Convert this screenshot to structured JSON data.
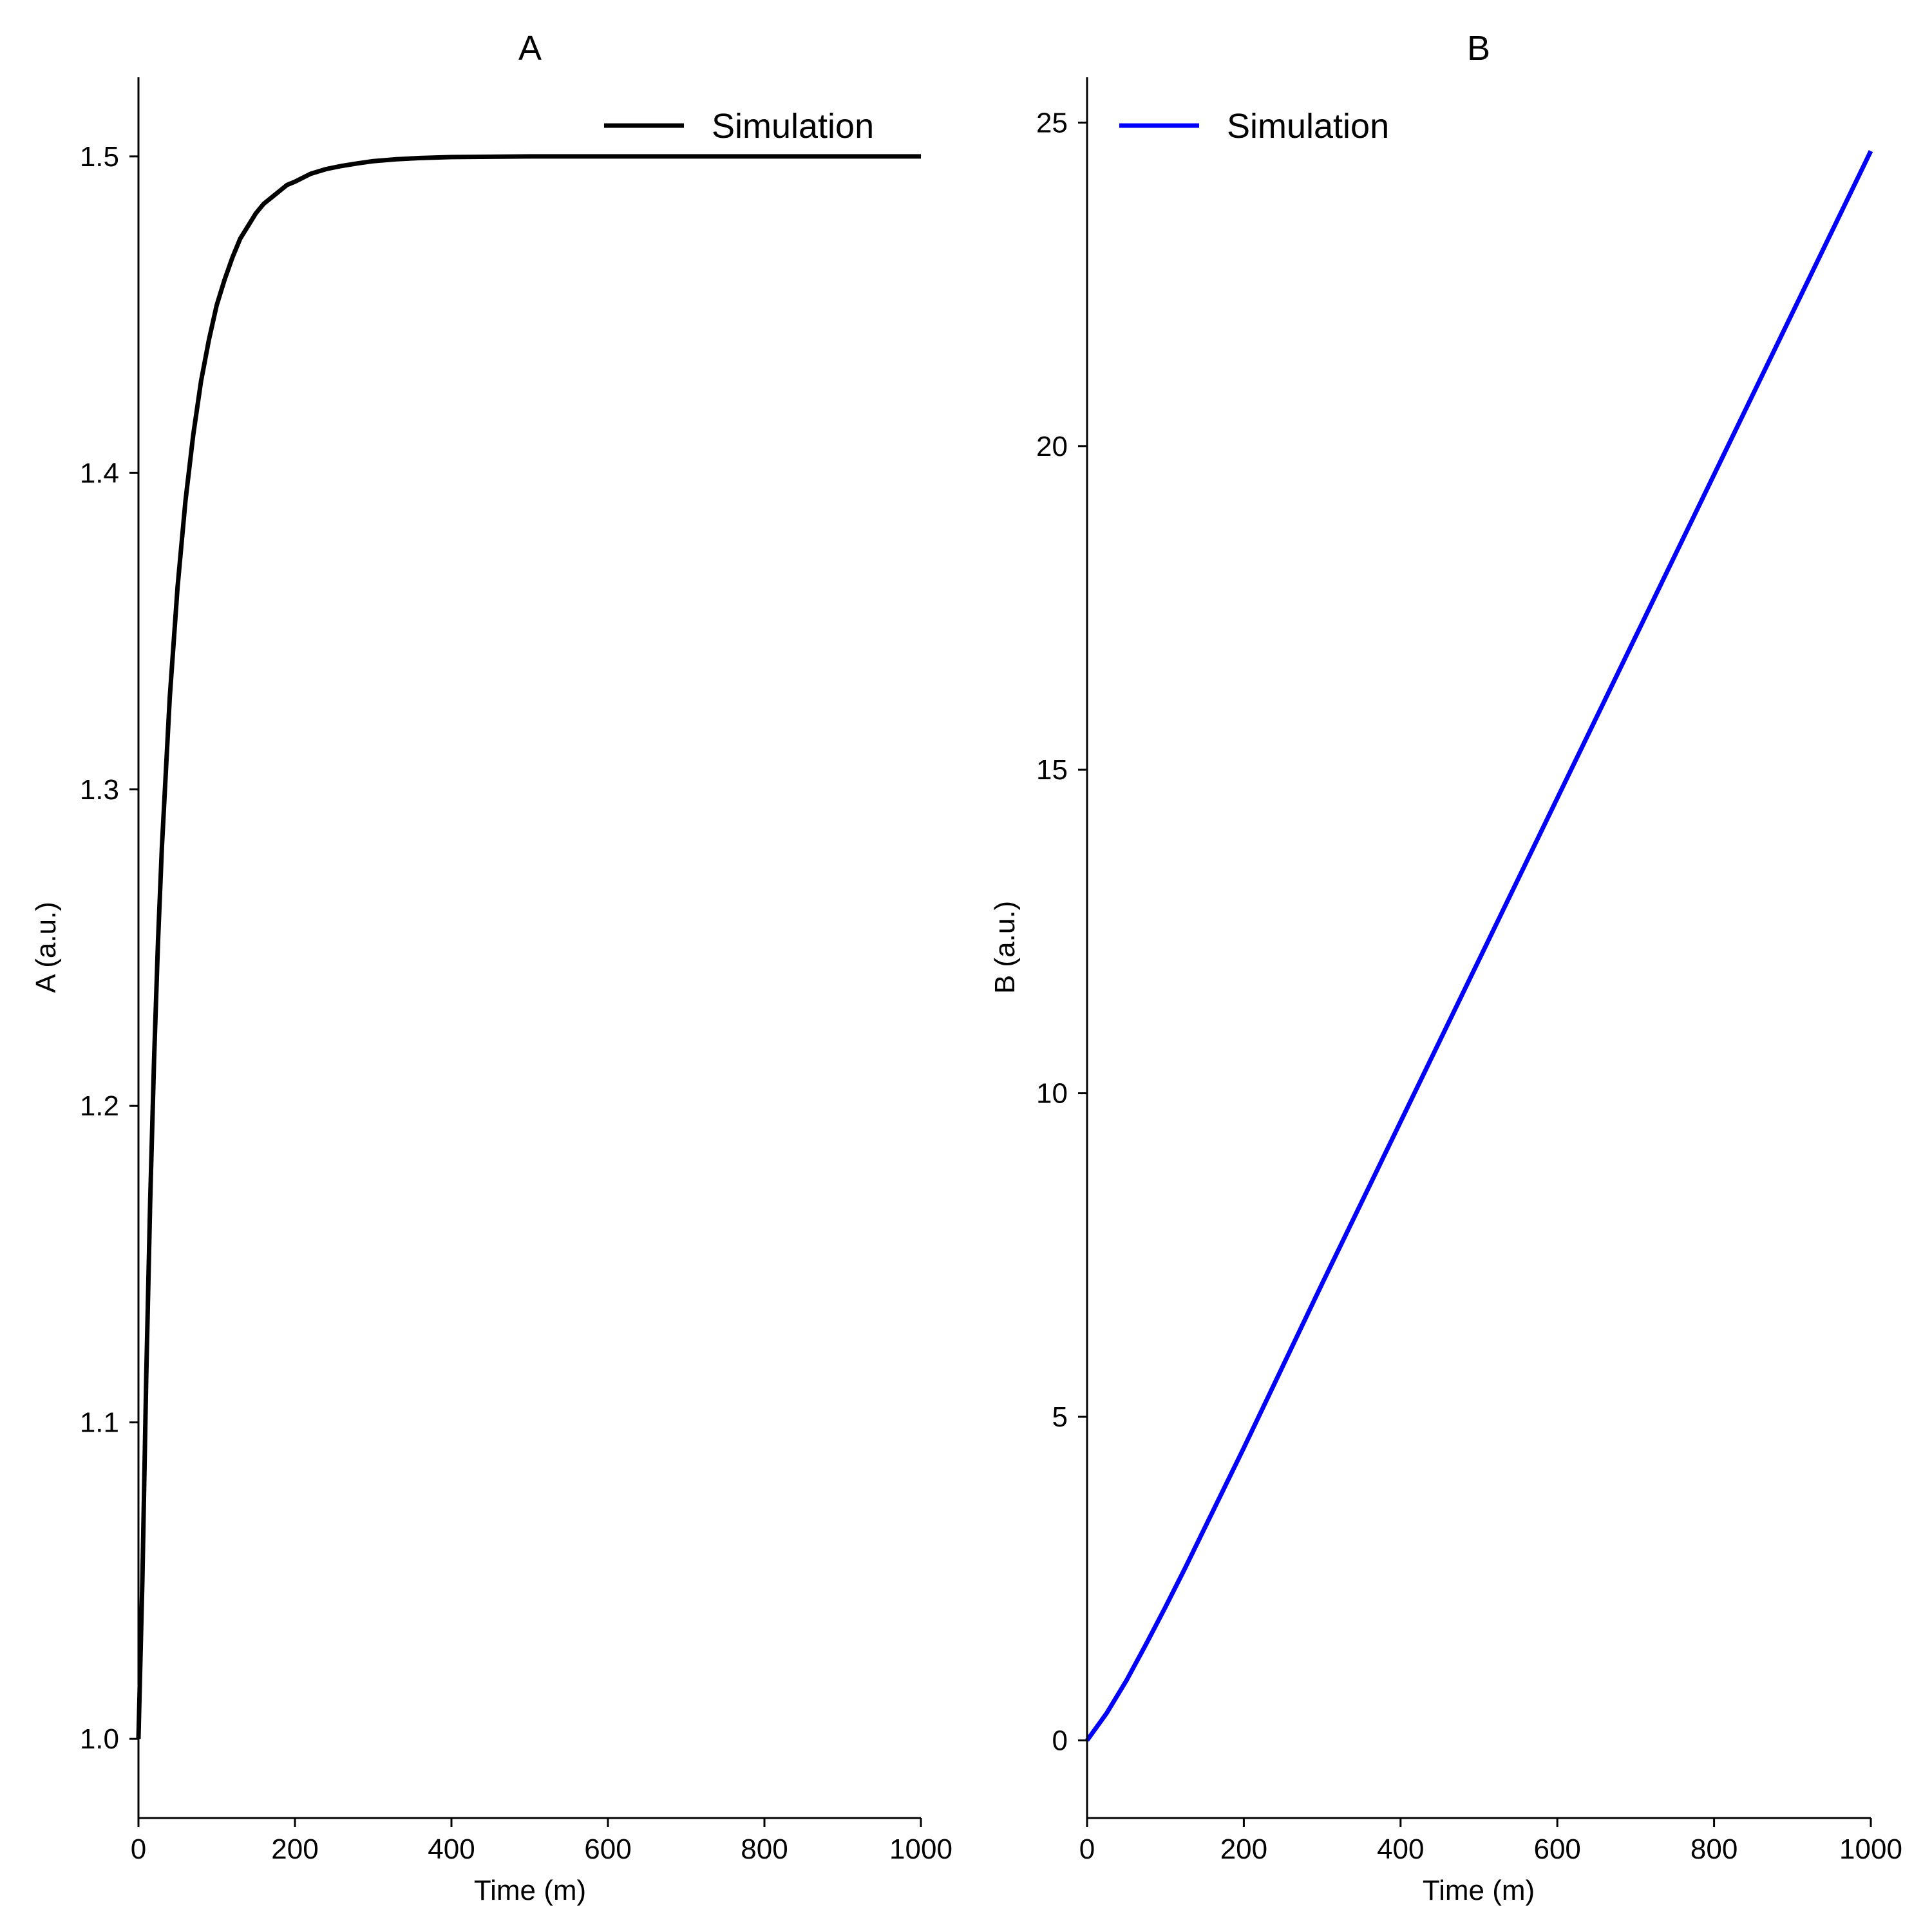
{
  "chart_data": [
    {
      "type": "line",
      "title": "A",
      "xlabel": "Time (m)",
      "ylabel": "A (a.u.)",
      "xlim": [
        0,
        1000
      ],
      "ylim": [
        0.975,
        1.525
      ],
      "xticks": [
        0,
        200,
        400,
        600,
        800,
        1000
      ],
      "xtick_labels": [
        "0",
        "200",
        "400",
        "600",
        "800",
        "1000"
      ],
      "yticks": [
        1.0,
        1.1,
        1.2,
        1.3,
        1.4,
        1.5
      ],
      "ytick_labels": [
        "1.0",
        "1.1",
        "1.2",
        "1.3",
        "1.4",
        "1.5"
      ],
      "legend_position": "top-right",
      "grid": false,
      "series": [
        {
          "name": "Simulation",
          "color": "#000000",
          "x": [
            0,
            5,
            10,
            15,
            20,
            25,
            30,
            40,
            50,
            60,
            70,
            80,
            90,
            100,
            110,
            120,
            130,
            140,
            150,
            160,
            170,
            180,
            190,
            200,
            220,
            240,
            260,
            280,
            300,
            330,
            360,
            400,
            450,
            500,
            600,
            700,
            800,
            900,
            1000
          ],
          "y": [
            1.0,
            1.05,
            1.115,
            1.17,
            1.215,
            1.252,
            1.282,
            1.329,
            1.364,
            1.391,
            1.412,
            1.429,
            1.442,
            1.453,
            1.461,
            1.468,
            1.474,
            1.478,
            1.482,
            1.485,
            1.487,
            1.489,
            1.491,
            1.492,
            1.4945,
            1.496,
            1.497,
            1.4978,
            1.4985,
            1.4991,
            1.4995,
            1.4998,
            1.4999,
            1.5,
            1.5,
            1.5,
            1.5,
            1.5,
            1.5
          ]
        }
      ]
    },
    {
      "type": "line",
      "title": "B",
      "xlabel": "Time (m)",
      "ylabel": "B (a.u.)",
      "xlim": [
        0,
        1000
      ],
      "ylim": [
        -1.2,
        25.7
      ],
      "xticks": [
        0,
        200,
        400,
        600,
        800,
        1000
      ],
      "xtick_labels": [
        "0",
        "200",
        "400",
        "600",
        "800",
        "1000"
      ],
      "yticks": [
        0,
        5,
        10,
        15,
        20,
        25
      ],
      "ytick_labels": [
        "0",
        "5",
        "10",
        "15",
        "20",
        "25"
      ],
      "legend_position": "top-left",
      "grid": false,
      "series": [
        {
          "name": "Simulation",
          "color": "#0000ff",
          "x": [
            0,
            25,
            50,
            75,
            100,
            125,
            150,
            175,
            200,
            250,
            300,
            400,
            500,
            600,
            700,
            800,
            900,
            1000
          ],
          "y": [
            0,
            0.42,
            0.92,
            1.48,
            2.06,
            2.66,
            3.28,
            3.9,
            4.52,
            5.79,
            7.06,
            9.56,
            12.06,
            14.56,
            17.06,
            19.56,
            22.06,
            24.56
          ]
        }
      ]
    }
  ]
}
